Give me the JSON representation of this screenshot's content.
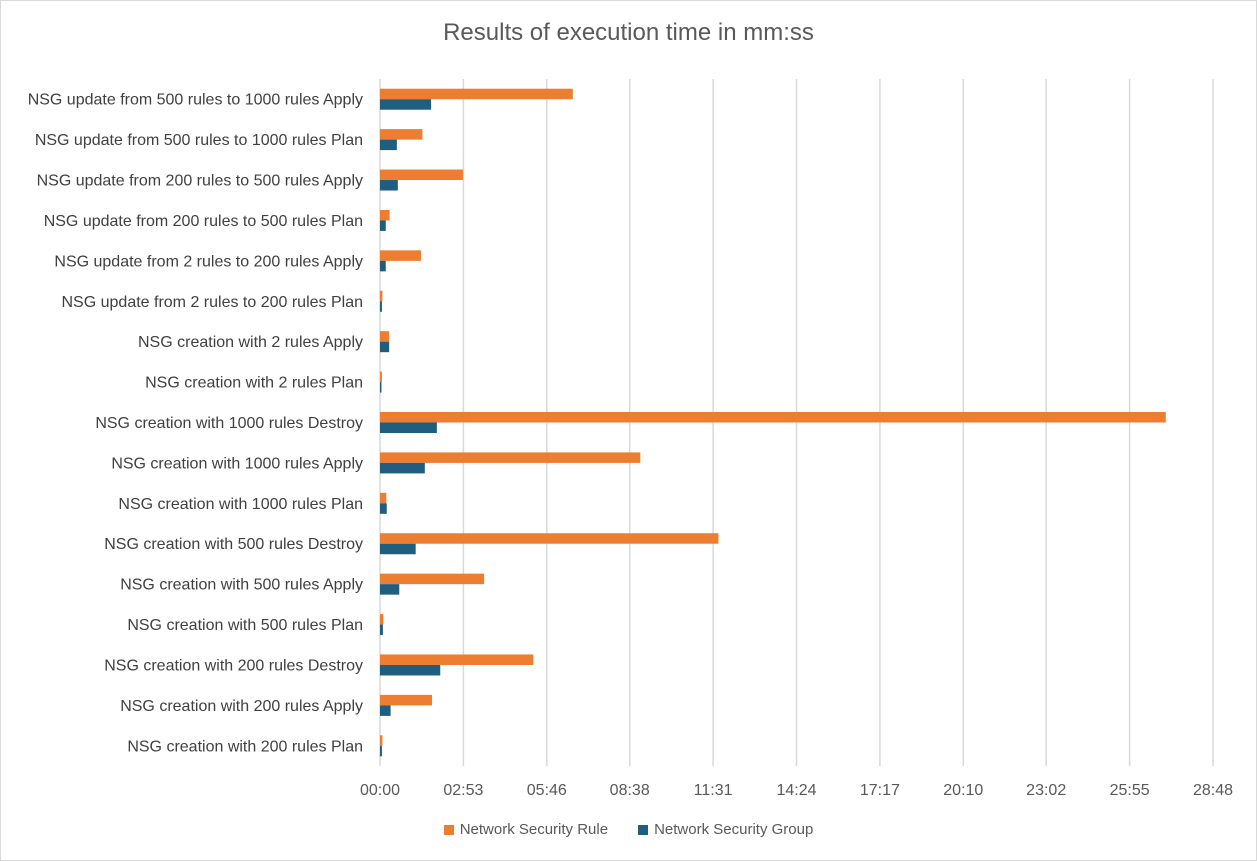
{
  "chart_data": {
    "type": "bar",
    "orientation": "horizontal",
    "title": "Results of execution time in mm:ss",
    "xlabel": "",
    "ylabel": "",
    "value_unit": "seconds",
    "xlim": [
      0,
      1728
    ],
    "x_ticks": [
      0,
      173,
      346,
      518,
      691,
      864,
      1037,
      1210,
      1382,
      1555,
      1728
    ],
    "x_tick_labels": [
      "00:00",
      "02:53",
      "05:46",
      "08:38",
      "11:31",
      "14:24",
      "17:17",
      "20:10",
      "23:02",
      "25:55",
      "28:48"
    ],
    "grid": "vertical",
    "legend_position": "bottom",
    "categories": [
      "NSG update from 500 rules to 1000 rules Apply",
      "NSG update from 500 rules to 1000 rules Plan",
      "NSG update from 200 rules to 500 rules Apply",
      "NSG update from 200 rules to 500 rules Plan",
      "NSG update from 2 rules to 200 rules Apply",
      "NSG update from 2 rules to 200 rules Plan",
      "NSG creation with 2 rules Apply",
      "NSG creation with 2 rules Plan",
      "NSG creation with 1000 rules Destroy",
      "NSG creation with 1000 rules Apply",
      "NSG creation with 1000 rules Plan",
      "NSG creation with 500 rules Destroy",
      "NSG creation with 500 rules Apply",
      "NSG creation with 500 rules Plan",
      "NSG creation with 200 rules Destroy",
      "NSG creation with 200 rules Apply",
      "NSG creation with 200 rules Plan"
    ],
    "series": [
      {
        "name": "Network Security Rule",
        "color": "#ed7d31",
        "values": [
          400,
          88,
          172,
          20,
          85,
          5,
          19,
          4,
          1630,
          540,
          13,
          702,
          216,
          7,
          318,
          108,
          5
        ]
      },
      {
        "name": "Network Security Group",
        "color": "#1f5e7e",
        "values": [
          106,
          35,
          37,
          12,
          12,
          4,
          19,
          3,
          118,
          93,
          14,
          74,
          40,
          6,
          125,
          22,
          4
        ]
      }
    ]
  }
}
